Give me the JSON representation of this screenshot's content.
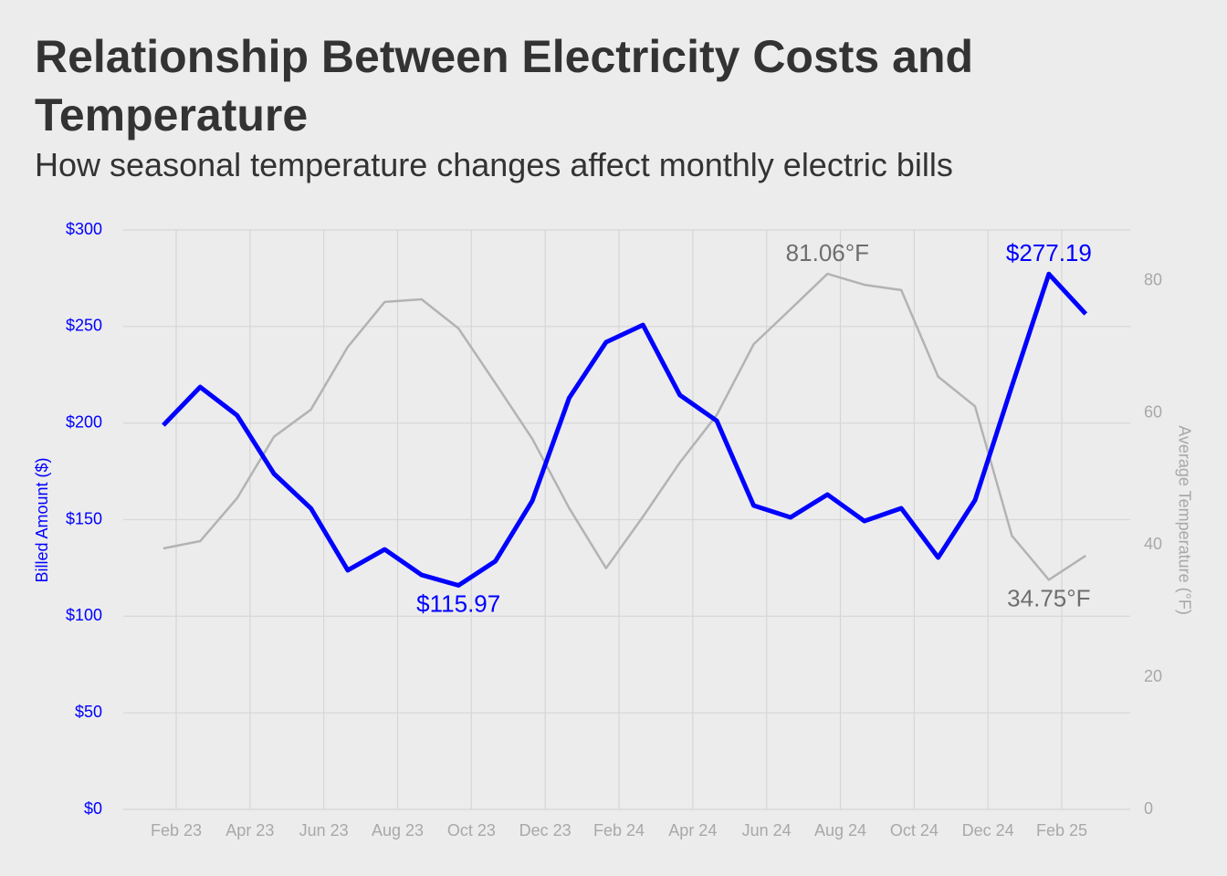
{
  "chart_data": {
    "type": "line",
    "title": "Relationship Between Electricity Costs and Temperature",
    "subtitle": "How seasonal temperature changes affect monthly electric bills",
    "ylabel": "Billed Amount ($)",
    "y2label": "Average Temperature (°F)",
    "x": [
      "2023-01",
      "2023-02",
      "2023-03",
      "2023-04",
      "2023-05",
      "2023-06",
      "2023-07",
      "2023-08",
      "2023-09",
      "2023-10",
      "2023-11",
      "2023-12",
      "2024-01",
      "2024-02",
      "2024-03",
      "2024-04",
      "2024-05",
      "2024-06",
      "2024-07",
      "2024-08",
      "2024-09",
      "2024-10",
      "2024-11",
      "2024-12",
      "2025-01",
      "2025-02"
    ],
    "xticks": [
      {
        "value": "2023-02",
        "label": "Feb 23"
      },
      {
        "value": "2023-04",
        "label": "Apr 23"
      },
      {
        "value": "2023-06",
        "label": "Jun 23"
      },
      {
        "value": "2023-08",
        "label": "Aug 23"
      },
      {
        "value": "2023-10",
        "label": "Oct 23"
      },
      {
        "value": "2023-12",
        "label": "Dec 23"
      },
      {
        "value": "2024-02",
        "label": "Feb 24"
      },
      {
        "value": "2024-04",
        "label": "Apr 24"
      },
      {
        "value": "2024-06",
        "label": "Jun 24"
      },
      {
        "value": "2024-08",
        "label": "Aug 24"
      },
      {
        "value": "2024-10",
        "label": "Oct 24"
      },
      {
        "value": "2024-12",
        "label": "Dec 24"
      },
      {
        "value": "2025-02",
        "label": "Feb 25"
      }
    ],
    "ylim": [
      0,
      300
    ],
    "yticks": [
      {
        "value": 0,
        "label": "$0"
      },
      {
        "value": 50,
        "label": "$50"
      },
      {
        "value": 100,
        "label": "$100"
      },
      {
        "value": 150,
        "label": "$150"
      },
      {
        "value": 200,
        "label": "$200"
      },
      {
        "value": 250,
        "label": "$250"
      },
      {
        "value": 300,
        "label": "$300"
      }
    ],
    "y2lim": [
      0,
      87.7
    ],
    "y2ticks": [
      0,
      20,
      40,
      60,
      80
    ],
    "grid": true,
    "series": [
      {
        "color": "#0000ff",
        "values": [
          198.9,
          218.7,
          204,
          173.8,
          155.9,
          123.8,
          134.6,
          121.4,
          115.97,
          128.5,
          159.7,
          213,
          241.9,
          250.8,
          214.5,
          201.2,
          157.3,
          151.2,
          163,
          149.3,
          155.9,
          130.4,
          160.1,
          219.2,
          277.19,
          256.5
        ],
        "value_labels": [
          null,
          null,
          null,
          null,
          null,
          null,
          null,
          null,
          "$115.97",
          null,
          null,
          null,
          null,
          null,
          null,
          null,
          null,
          null,
          null,
          null,
          null,
          null,
          null,
          null,
          "$277.19",
          null
        ]
      },
      {
        "color": "#b3b3b3",
        "axis": "y2",
        "values": [
          39.5,
          40.6,
          47.1,
          56.4,
          60.5,
          70.0,
          76.8,
          77.2,
          72.8,
          64.5,
          56.1,
          45.6,
          36.5,
          44.3,
          52.5,
          59.7,
          70.4,
          75.7,
          81.06,
          79.4,
          78.6,
          65.5,
          61.0,
          41.4,
          34.75,
          38.4
        ],
        "value_labels": [
          null,
          null,
          null,
          null,
          null,
          null,
          null,
          null,
          null,
          null,
          null,
          null,
          null,
          null,
          null,
          null,
          null,
          null,
          "81.06°F",
          null,
          null,
          null,
          null,
          null,
          "34.75°F",
          null
        ]
      }
    ]
  }
}
